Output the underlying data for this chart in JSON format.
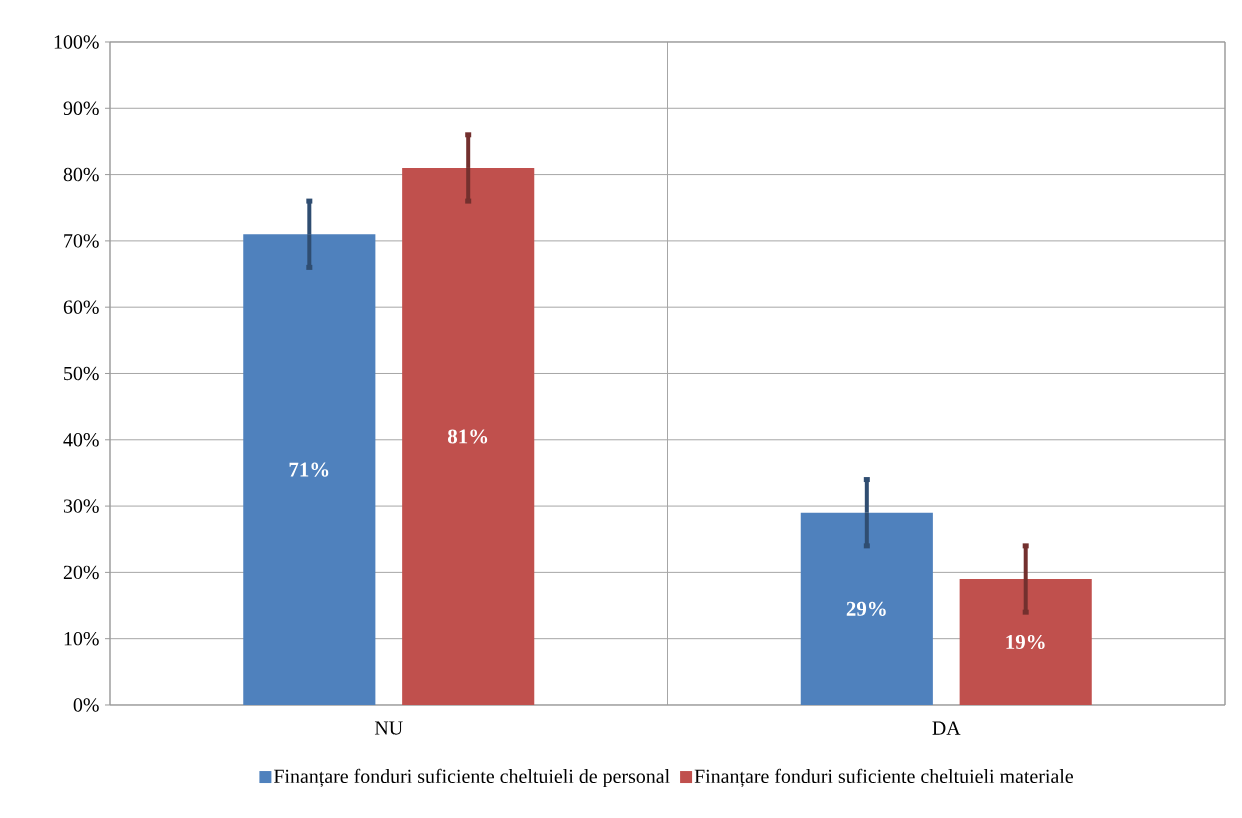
{
  "chart_data": {
    "type": "bar",
    "categories": [
      "NU",
      "DA"
    ],
    "series": [
      {
        "name": "Finanțare fonduri suficiente cheltuieli de personal",
        "color": "#4f81bd",
        "values": [
          71,
          29
        ],
        "errors": [
          5,
          5
        ],
        "value_labels": [
          "71%",
          "29%"
        ]
      },
      {
        "name": "Finanțare fonduri suficiente cheltuieli materiale",
        "color": "#c0504d",
        "values": [
          81,
          19
        ],
        "errors": [
          5,
          5
        ],
        "value_labels": [
          "81%",
          "19%"
        ]
      }
    ],
    "ylim": [
      0,
      100
    ],
    "yticks": [
      {
        "value": 0,
        "label": "0%"
      },
      {
        "value": 10,
        "label": "10%"
      },
      {
        "value": 20,
        "label": "20%"
      },
      {
        "value": 30,
        "label": "30%"
      },
      {
        "value": 40,
        "label": "40%"
      },
      {
        "value": 50,
        "label": "50%"
      },
      {
        "value": 60,
        "label": "60%"
      },
      {
        "value": 70,
        "label": "70%"
      },
      {
        "value": 80,
        "label": "80%"
      },
      {
        "value": 90,
        "label": "90%"
      },
      {
        "value": 100,
        "label": "100%"
      }
    ],
    "grid": true,
    "legend": "bottom"
  }
}
